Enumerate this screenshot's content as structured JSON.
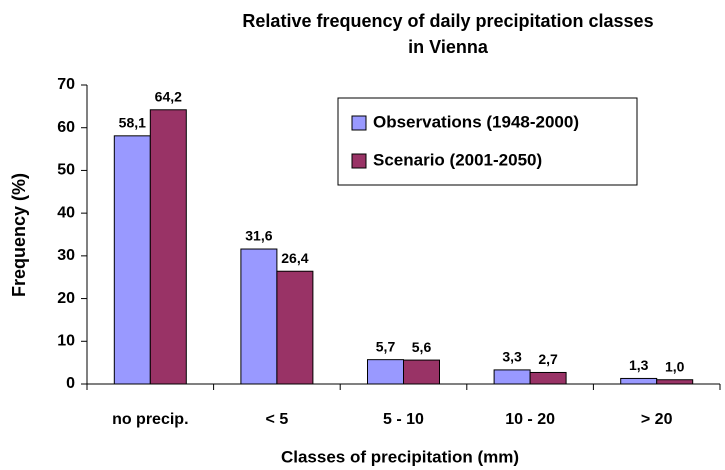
{
  "chart_data": {
    "type": "bar",
    "title": [
      "Relative frequency of daily precipitation classes",
      "in Vienna"
    ],
    "x_label": "Classes of precipitation (mm)",
    "y_label": "Frequency (%)",
    "categories": [
      "no precip.",
      "< 5",
      "5 - 10",
      "10 - 20",
      "> 20"
    ],
    "series": [
      {
        "name": "Observations (1948-2000)",
        "color": "#9999ff",
        "values": [
          58.1,
          31.6,
          5.7,
          3.3,
          1.3
        ],
        "value_labels": [
          "58,1",
          "31,6",
          "5,7",
          "3,3",
          "1,3"
        ]
      },
      {
        "name": "Scenario (2001-2050)",
        "color": "#993366",
        "values": [
          64.2,
          26.4,
          5.6,
          2.7,
          1.0
        ],
        "value_labels": [
          "64,2",
          "26,4",
          "5,6",
          "2,7",
          "1,0"
        ]
      }
    ],
    "ylim": [
      0,
      70
    ],
    "yticks": [
      0,
      10,
      20,
      30,
      40,
      50,
      60,
      70
    ],
    "legend": "top-right"
  }
}
